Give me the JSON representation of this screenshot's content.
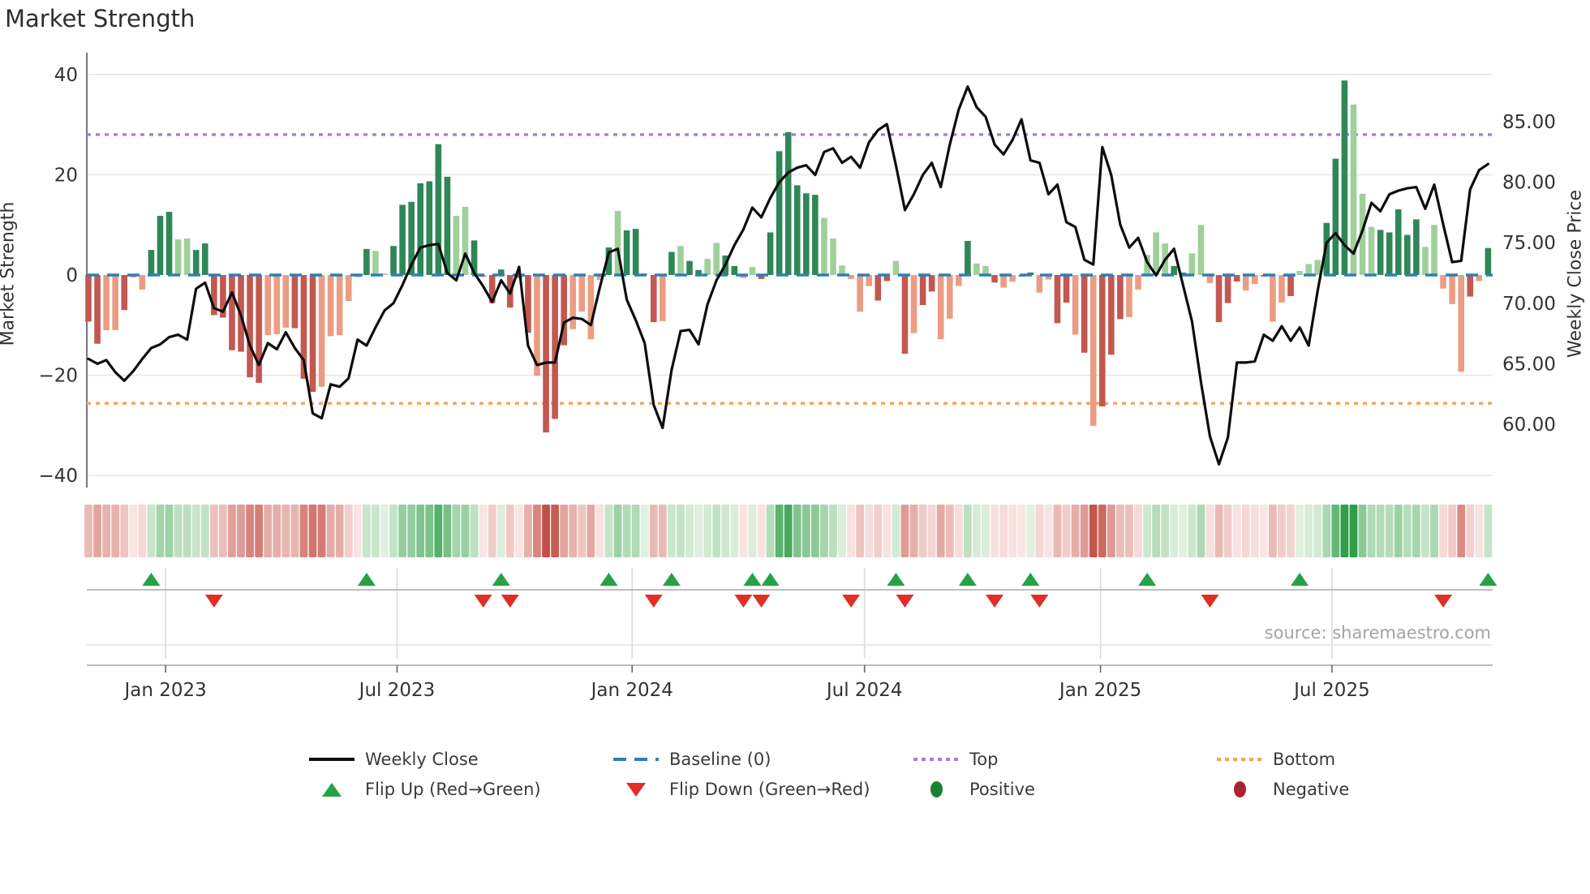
{
  "title": "Market Strength",
  "source": "source: sharemaestro.com",
  "left_axis": {
    "label": "Market Strength",
    "ticks": [
      {
        "v": 40,
        "label": "40"
      },
      {
        "v": 20,
        "label": "20"
      },
      {
        "v": 0,
        "label": "0"
      },
      {
        "v": -20,
        "label": "−20"
      },
      {
        "v": -40,
        "label": "−40"
      }
    ]
  },
  "right_axis": {
    "label": "Weekly Close Price",
    "ticks": [
      {
        "v": 85,
        "label": "85.00"
      },
      {
        "v": 80,
        "label": "80.00"
      },
      {
        "v": 75,
        "label": "75.00"
      },
      {
        "v": 70,
        "label": "70.00"
      },
      {
        "v": 65,
        "label": "65.00"
      },
      {
        "v": 60,
        "label": "60.00"
      }
    ]
  },
  "x_axis": {
    "ticks": [
      {
        "label": "Jan 2023",
        "week": 8.6
      },
      {
        "label": "Jul 2023",
        "week": 34.4
      },
      {
        "label": "Jan 2024",
        "week": 60.6
      },
      {
        "label": "Jul 2024",
        "week": 86.5
      },
      {
        "label": "Jan 2025",
        "week": 112.8
      },
      {
        "label": "Jul 2025",
        "week": 138.6
      }
    ]
  },
  "legend": {
    "weekly_close": "Weekly Close",
    "baseline": "Baseline (0)",
    "top": "Top",
    "bottom": "Bottom",
    "flip_up": "Flip Up (Red→Green)",
    "flip_down": "Flip Down (Green→Red)",
    "positive": "Positive",
    "negative": "Negative"
  },
  "colors": {
    "dark_green": "#2f8757",
    "light_green": "#9fd09a",
    "dark_red": "#c25850",
    "salmon": "#eb9d83",
    "baseline": "#2e7fb8",
    "top_line": "#a77fd4",
    "bottom_line": "#f3a45f",
    "price_line": "#0d0d0d",
    "flip_up": "#25a244",
    "flip_down": "#e02f26",
    "positive": "#17822e",
    "negative": "#aa2430",
    "grid": "#e7e7ee",
    "axis": "#b5b5b5",
    "tick_text": "#333333"
  },
  "chart_data": {
    "type": "bar+line+heatmap",
    "title": "Market Strength",
    "ylabel": "Market Strength",
    "y2label": "Weekly Close Price",
    "ylim": [
      -40,
      40
    ],
    "y2lim": [
      58.5,
      89.5
    ],
    "top_level": 28.0,
    "bottom_level": -25.6,
    "baseline": 0,
    "weeks": 157,
    "strength": [
      -9.3,
      -13.7,
      -11,
      -11,
      -7,
      -0.5,
      -2.9,
      5,
      11.8,
      12.6,
      7.1,
      7.3,
      5,
      6.3,
      -8,
      -8.5,
      -15,
      -15.3,
      -20.4,
      -21.5,
      -12,
      -11.8,
      -10.5,
      -10.6,
      -20.7,
      -23.3,
      -22.3,
      -12.2,
      -12,
      -5.2,
      -0.4,
      5.2,
      4.8,
      0.3,
      5.8,
      14,
      14.6,
      18.3,
      18.7,
      26.1,
      19.6,
      11.8,
      13.6,
      6.9,
      -0.4,
      -5.6,
      1.1,
      -6.5,
      -0.6,
      -11.5,
      -20.1,
      -31.4,
      -28.7,
      -14,
      -10.8,
      -7.3,
      -12.8,
      -1,
      5.5,
      12.8,
      8.9,
      9.2,
      0.3,
      -9.4,
      -9.2,
      4.6,
      5.8,
      2.8,
      1,
      3.2,
      6.4,
      3.9,
      1.8,
      -0.6,
      1.6,
      -0.8,
      8.5,
      24.7,
      28.5,
      17.9,
      16.3,
      16,
      11.4,
      7.3,
      1.9,
      -0.8,
      -7.3,
      -2.2,
      -5.1,
      -1.2,
      2.8,
      -15.7,
      -11.6,
      -6,
      -3.3,
      -12.8,
      -8.7,
      -2.2,
      6.8,
      2.3,
      1.8,
      -1.5,
      -2.5,
      -1.3,
      -0.3,
      0.5,
      -3.5,
      -0.9,
      -9.6,
      -5.5,
      -11.9,
      -15.5,
      -30.1,
      -26.2,
      -15.9,
      -8.8,
      -8.4,
      -2.9,
      4,
      8.5,
      6.3,
      1.8,
      0.5,
      4.3,
      10,
      -1.6,
      -9.4,
      -5.6,
      -1.3,
      -3.1,
      -1.8,
      -0.3,
      -9.3,
      -5.5,
      -4.2,
      0.8,
      2.2,
      3,
      10.4,
      23.2,
      38.8,
      34,
      16.2,
      9.6,
      9,
      8.5,
      13.1,
      8,
      11.1,
      5.6,
      10,
      -2.7,
      -5.8,
      -19.3,
      -4.3,
      -1.2,
      5.4
    ],
    "shades": "ddlldlldddllddddddddllldddllllldlldddddddlldldddddldddlllldlddldldlddllddlldddddddllllllddldlddllldlldllddllddldldddlllllddllldddlldlldllldddllldddddllllldldlddddlld",
    "weekly_close": [
      65.4,
      65.0,
      65.3,
      64.3,
      63.6,
      64.4,
      65.4,
      66.3,
      66.6,
      67.2,
      67.4,
      67.0,
      71.2,
      71.7,
      69.6,
      69.3,
      70.9,
      69.0,
      66.5,
      64.9,
      66.7,
      66.2,
      67.6,
      66.3,
      65.3,
      60.9,
      60.5,
      63.3,
      63.1,
      63.8,
      67.0,
      66.5,
      68.0,
      69.4,
      70.0,
      71.5,
      73.2,
      74.6,
      74.8,
      74.9,
      72.5,
      71.9,
      74.1,
      72.5,
      71.4,
      70.1,
      71.9,
      70.8,
      73.0,
      66.5,
      64.9,
      65.1,
      65.1,
      68.4,
      68.8,
      68.7,
      68.2,
      71.3,
      74.2,
      74.5,
      70.3,
      68.6,
      66.7,
      61.6,
      59.7,
      64.5,
      67.7,
      67.8,
      66.6,
      69.9,
      71.9,
      73.2,
      74.8,
      76.1,
      77.9,
      77.1,
      78.7,
      80.0,
      80.8,
      81.2,
      81.4,
      80.6,
      82.5,
      82.8,
      81.6,
      82.1,
      81.2,
      83.3,
      84.3,
      84.8,
      81.4,
      77.7,
      79.0,
      80.6,
      81.6,
      79.6,
      83.1,
      86.0,
      87.9,
      86.2,
      85.4,
      83.1,
      82.3,
      83.5,
      85.2,
      81.8,
      81.6,
      79.0,
      79.8,
      76.7,
      76.3,
      73.6,
      73.2,
      82.9,
      80.6,
      76.5,
      74.6,
      75.4,
      73.4,
      72.3,
      73.6,
      74.5,
      71.5,
      68.5,
      63.5,
      59.0,
      56.7,
      58.9,
      65.1,
      65.1,
      65.2,
      67.4,
      66.9,
      68.1,
      66.9,
      68.0,
      66.5,
      71.0,
      75.0,
      75.8,
      74.8,
      74.1,
      76.0,
      78.3,
      77.6,
      79.0,
      79.3,
      79.5,
      79.6,
      77.8,
      79.8,
      76.5,
      73.4,
      73.5,
      79.4,
      81.0,
      81.5
    ],
    "flip_up_weeks": [
      7,
      31,
      46,
      58,
      65,
      74,
      76,
      90,
      98,
      105,
      118,
      135,
      156
    ],
    "flip_down_weeks": [
      14,
      44,
      47,
      63,
      73,
      75,
      85,
      91,
      101,
      106,
      125,
      151
    ]
  }
}
